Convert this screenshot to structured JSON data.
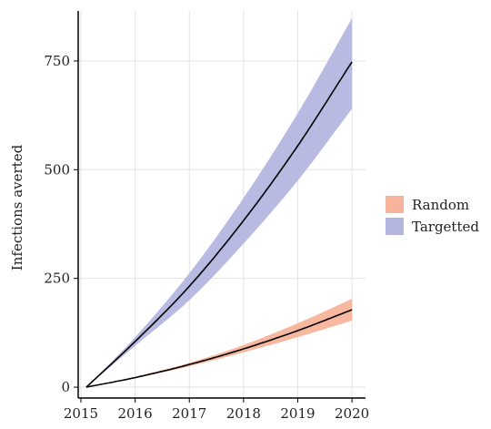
{
  "chart_data": {
    "type": "line",
    "title": "",
    "xlabel": "",
    "ylabel": "Infections averted",
    "xlim": [
      2014.95,
      2020.25
    ],
    "ylim": [
      -25,
      865
    ],
    "x_ticks": [
      "2015",
      "2016",
      "2017",
      "2018",
      "2019",
      "2020"
    ],
    "y_ticks": [
      "0",
      "250",
      "500",
      "750"
    ],
    "grid": true,
    "legend_position": "right",
    "x": [
      2015.1,
      2016,
      2017,
      2018,
      2019,
      2020
    ],
    "series": [
      {
        "name": "Random",
        "color": "#f8b49a",
        "mean": [
          0,
          22,
          52,
          88,
          130,
          178
        ],
        "lower": [
          0,
          21,
          48,
          80,
          115,
          153
        ],
        "upper": [
          0,
          24,
          56,
          97,
          147,
          203
        ]
      },
      {
        "name": "Targetted",
        "color": "#b4b6e0",
        "mean": [
          0,
          105,
          232,
          383,
          555,
          748
        ],
        "lower": [
          0,
          95,
          200,
          330,
          475,
          640
        ],
        "upper": [
          0,
          115,
          262,
          435,
          630,
          848
        ]
      }
    ]
  }
}
